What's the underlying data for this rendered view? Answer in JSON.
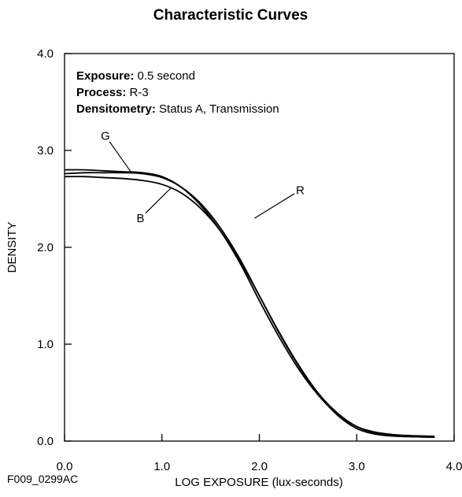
{
  "chart_data": {
    "type": "line",
    "title": "Characteristic Curves",
    "xlabel": "LOG EXPOSURE (lux-seconds)",
    "ylabel": "DENSITY",
    "xlim": [
      0.0,
      4.0
    ],
    "ylim": [
      0.0,
      4.0
    ],
    "x_ticks": [
      "0.0",
      "1.0",
      "2.0",
      "3.0",
      "4.0"
    ],
    "y_ticks": [
      "0.0",
      "1.0",
      "2.0",
      "3.0",
      "4.0"
    ],
    "grid": false,
    "annotations": [
      {
        "label": "Exposure:",
        "value": " 0.5 second"
      },
      {
        "label": "Process:",
        "value": " R-3"
      },
      {
        "label": "Densitometry:",
        "value": " Status A, Transmission"
      }
    ],
    "series": [
      {
        "name": "R",
        "color": "#000000",
        "x": [
          0.0,
          0.2,
          0.4,
          0.6,
          0.8,
          1.0,
          1.2,
          1.4,
          1.6,
          1.8,
          2.0,
          2.2,
          2.4,
          2.6,
          2.8,
          3.0,
          3.2,
          3.4,
          3.6,
          3.8
        ],
        "y": [
          2.76,
          2.77,
          2.77,
          2.77,
          2.76,
          2.72,
          2.62,
          2.45,
          2.2,
          1.88,
          1.5,
          1.12,
          0.78,
          0.49,
          0.27,
          0.13,
          0.07,
          0.05,
          0.045,
          0.04
        ]
      },
      {
        "name": "G",
        "color": "#000000",
        "x": [
          0.0,
          0.2,
          0.4,
          0.6,
          0.8,
          1.0,
          1.2,
          1.4,
          1.6,
          1.8,
          2.0,
          2.2,
          2.4,
          2.6,
          2.8,
          3.0,
          3.2,
          3.4,
          3.6,
          3.8
        ],
        "y": [
          2.8,
          2.8,
          2.79,
          2.78,
          2.77,
          2.73,
          2.62,
          2.43,
          2.17,
          1.84,
          1.45,
          1.08,
          0.75,
          0.48,
          0.28,
          0.15,
          0.09,
          0.065,
          0.055,
          0.05
        ]
      },
      {
        "name": "B",
        "color": "#000000",
        "x": [
          0.0,
          0.2,
          0.4,
          0.6,
          0.8,
          1.0,
          1.2,
          1.4,
          1.6,
          1.8,
          2.0,
          2.2,
          2.4,
          2.6,
          2.8,
          3.0,
          3.2,
          3.4,
          3.6,
          3.8
        ],
        "y": [
          2.73,
          2.73,
          2.72,
          2.71,
          2.69,
          2.65,
          2.56,
          2.4,
          2.17,
          1.86,
          1.5,
          1.13,
          0.79,
          0.5,
          0.29,
          0.15,
          0.08,
          0.055,
          0.045,
          0.04
        ]
      }
    ],
    "curve_labels": [
      {
        "series": "G",
        "text": "G",
        "label_x": 0.42,
        "label_y": 3.11,
        "pointer_to": [
          0.68,
          2.78
        ]
      },
      {
        "series": "R",
        "text": "R",
        "label_x": 2.42,
        "label_y": 2.55,
        "pointer_to": [
          1.95,
          2.3
        ]
      },
      {
        "series": "B",
        "text": "B",
        "label_x": 0.78,
        "label_y": 2.26,
        "pointer_to": [
          1.1,
          2.62
        ]
      }
    ]
  },
  "figure_code": "F009_0299AC"
}
